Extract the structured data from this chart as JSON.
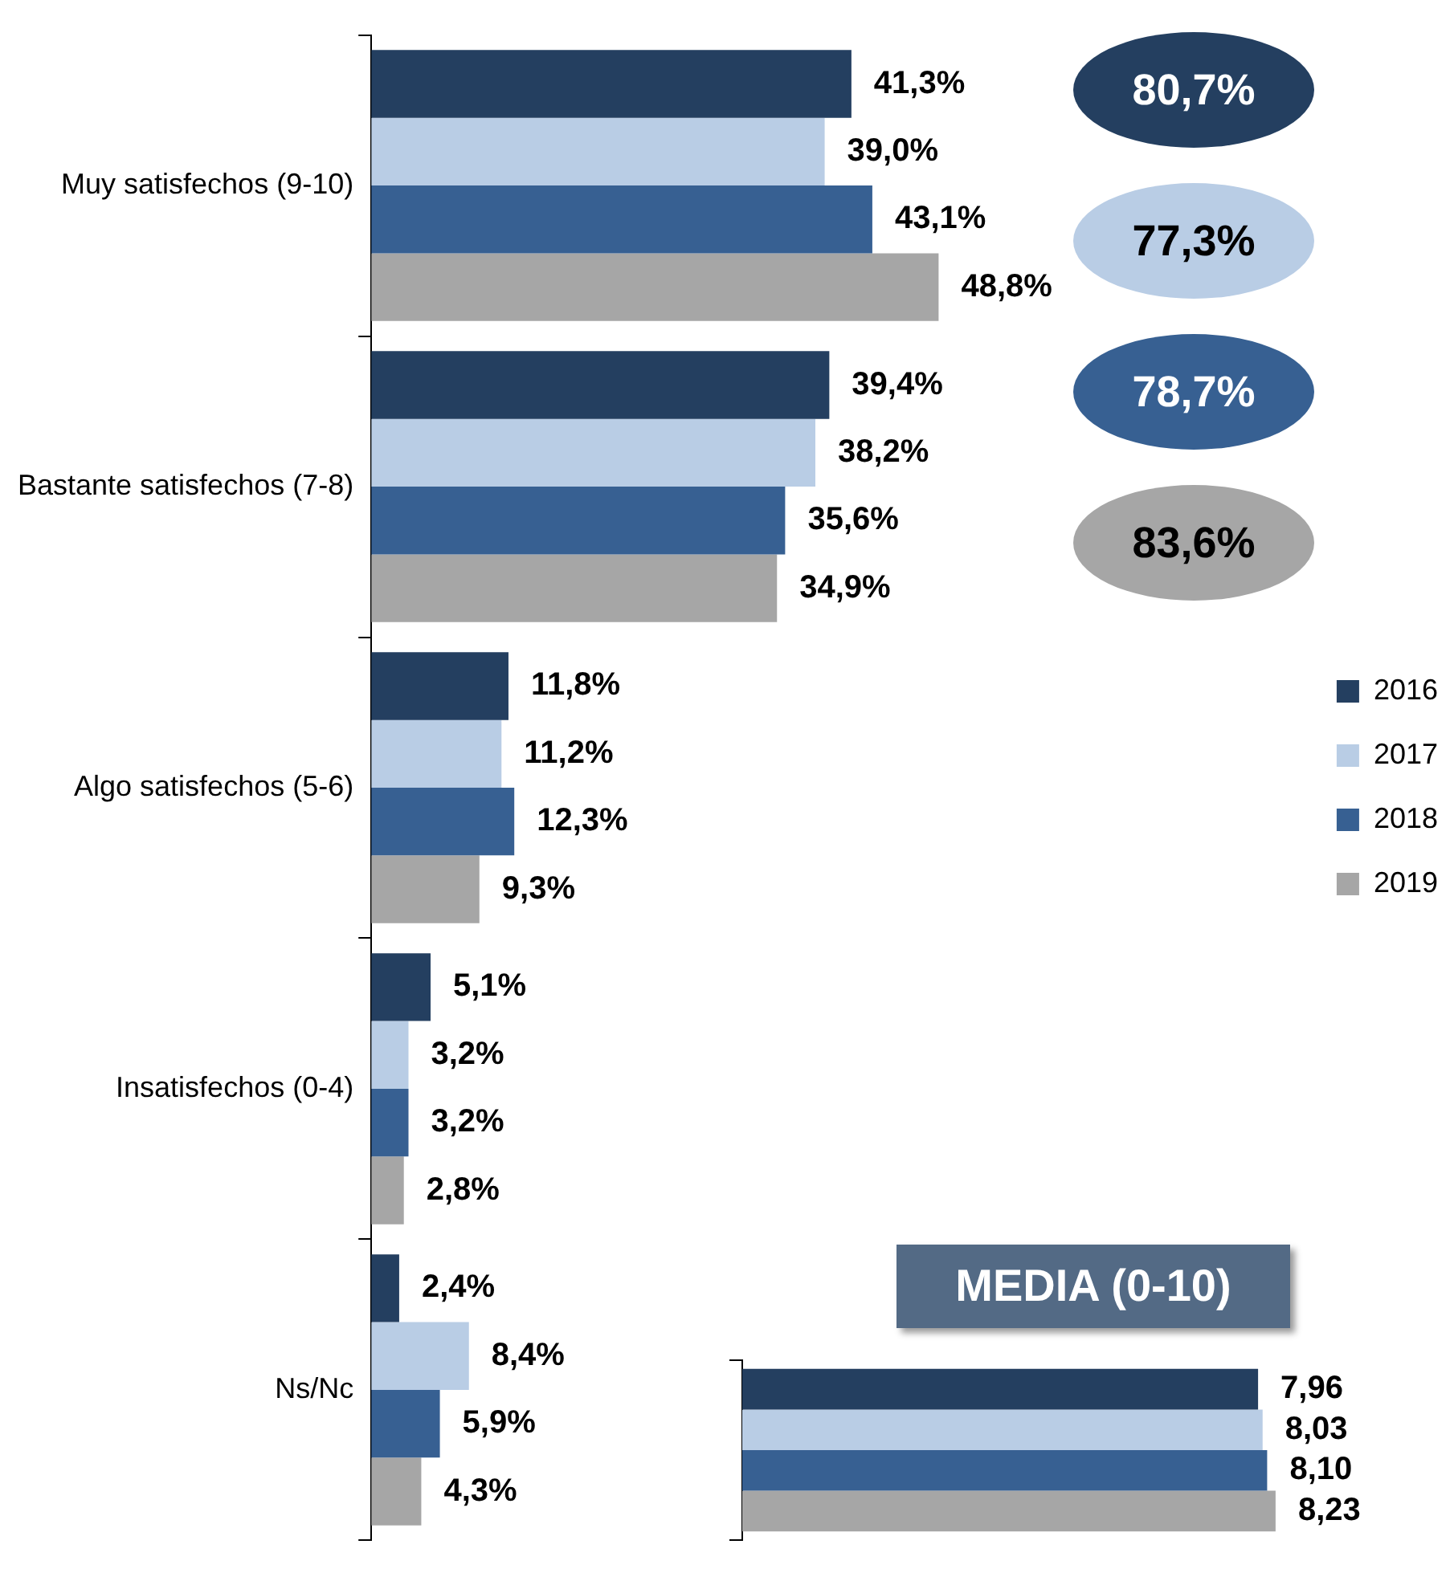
{
  "chart_data": [
    {
      "type": "bar",
      "orientation": "horizontal",
      "legend": "right",
      "categories": [
        "Muy satisfechos (9-10)",
        "Bastante satisfechos (7-8)",
        "Algo satisfechos (5-6)",
        "Insatisfechos (0-4)",
        "Ns/Nc"
      ],
      "series": [
        {
          "name": "2016",
          "color": "#243f60",
          "values": [
            41.3,
            39.4,
            11.8,
            5.1,
            2.4
          ],
          "value_labels": [
            "41,3%",
            "39,4%",
            "11,8%",
            "5,1%",
            "2,4%"
          ]
        },
        {
          "name": "2017",
          "color": "#b9cde5",
          "values": [
            39.0,
            38.2,
            11.2,
            3.2,
            8.4
          ],
          "value_labels": [
            "39,0%",
            "38,2%",
            "11,2%",
            "3,2%",
            "8,4%"
          ]
        },
        {
          "name": "2018",
          "color": "#376092",
          "values": [
            43.1,
            35.6,
            12.3,
            3.2,
            5.9
          ],
          "value_labels": [
            "43,1%",
            "35,6%",
            "12,3%",
            "3,2%",
            "5,9%"
          ]
        },
        {
          "name": "2019",
          "color": "#a6a6a6",
          "values": [
            48.8,
            34.9,
            9.3,
            2.8,
            4.3
          ],
          "value_labels": [
            "48,8%",
            "34,9%",
            "9,3%",
            "2,8%",
            "4,3%"
          ]
        }
      ],
      "annotations": [
        "80,7%",
        "77,3%",
        "78,7%",
        "83,6%"
      ]
    },
    {
      "type": "bar",
      "orientation": "horizontal",
      "title": "MEDIA (0-10)",
      "categories": [
        null
      ],
      "series": [
        {
          "color": "#243f60",
          "values": [
            7.96
          ],
          "value_labels": [
            "7,96"
          ]
        },
        {
          "color": "#b9cde5",
          "values": [
            8.03
          ],
          "value_labels": [
            "8,03"
          ]
        },
        {
          "color": "#376092",
          "values": [
            8.1
          ],
          "value_labels": [
            "8,10"
          ]
        },
        {
          "color": "#a6a6a6",
          "values": [
            8.23
          ],
          "value_labels": [
            "8,23"
          ]
        }
      ]
    }
  ]
}
